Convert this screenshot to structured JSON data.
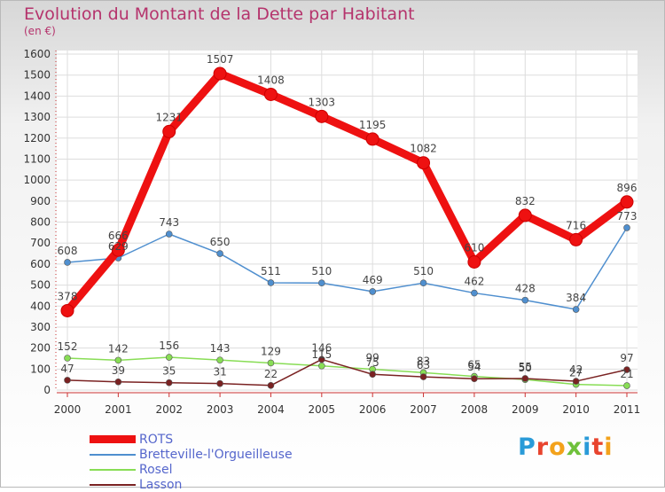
{
  "header": {
    "title": "Evolution du Montant de la Dette par Habitant",
    "subtitle": "(en €)"
  },
  "logo": {
    "text": "Proxiti",
    "letter_colors": [
      "#2a9bd8",
      "#e8442e",
      "#f3a21b",
      "#6fc13b",
      "#2a9bd8",
      "#e8442e",
      "#f3a21b"
    ]
  },
  "chart_data": {
    "type": "line",
    "title": "Evolution du Montant de la Dette par Habitant",
    "subtitle": "(en €)",
    "xlabel": "",
    "ylabel": "",
    "x": [
      "2000",
      "2001",
      "2002",
      "2003",
      "2004",
      "2005",
      "2006",
      "2007",
      "2008",
      "2009",
      "2010",
      "2011"
    ],
    "ylim": [
      0,
      1600
    ],
    "yticks": [
      0,
      100,
      200,
      300,
      400,
      500,
      600,
      700,
      800,
      900,
      1000,
      1100,
      1200,
      1300,
      1400,
      1500,
      1600
    ],
    "grid": true,
    "legend_position": "bottom-left",
    "series": [
      {
        "name": "ROTS",
        "color": "#ee1111",
        "emphasis": true,
        "values": [
          378,
          666,
          1231,
          1507,
          1408,
          1303,
          1195,
          1082,
          610,
          832,
          716,
          896
        ]
      },
      {
        "name": "Bretteville-l'Orgueilleuse",
        "color": "#4f8fcf",
        "emphasis": false,
        "values": [
          608,
          629,
          743,
          650,
          511,
          510,
          469,
          510,
          462,
          428,
          384,
          773
        ]
      },
      {
        "name": "Rosel",
        "color": "#88dd55",
        "emphasis": false,
        "values": [
          152,
          142,
          156,
          143,
          129,
          115,
          99,
          83,
          65,
          50,
          27,
          21
        ]
      },
      {
        "name": "Lasson",
        "color": "#7a2222",
        "emphasis": false,
        "values": [
          47,
          39,
          35,
          31,
          22,
          146,
          75,
          63,
          54,
          55,
          42,
          97
        ]
      }
    ]
  }
}
